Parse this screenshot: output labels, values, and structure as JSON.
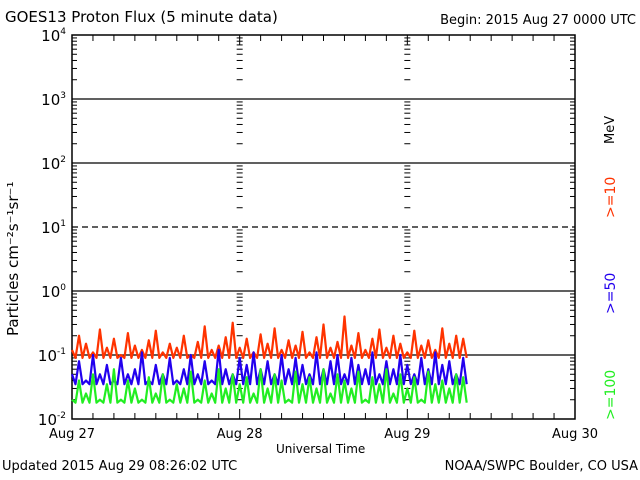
{
  "chart_data": {
    "type": "line",
    "title": "GOES13 Proton Flux (5 minute data)",
    "begin_label": "Begin: 2015 Aug 27 0000 UTC",
    "xlabel": "Universal Time",
    "ylabel": "Particles cm⁻²s⁻¹sr⁻¹",
    "yscale": "log",
    "ylim": [
      0.01,
      10000
    ],
    "xlim_hours": [
      0,
      72
    ],
    "x_ticks": [
      "Aug 27",
      "Aug 28",
      "Aug 29",
      "Aug 30"
    ],
    "y_ticks": [
      {
        "base": "10",
        "exp": "4",
        "value": 10000
      },
      {
        "base": "10",
        "exp": "3",
        "value": 1000
      },
      {
        "base": "10",
        "exp": "2",
        "value": 100
      },
      {
        "base": "10",
        "exp": "1",
        "value": 10
      },
      {
        "base": "10",
        "exp": "0",
        "value": 1
      },
      {
        "base": "10",
        "exp": "-1",
        "value": 0.1
      },
      {
        "base": "10",
        "exp": "-2",
        "value": 0.01
      }
    ],
    "threshold_dashed": 10,
    "x_hours_step": 1,
    "series": [
      {
        "name": ">=10",
        "color": "#ff3300",
        "floor": 0.09,
        "values": [
          0.12,
          0.2,
          0.15,
          0.11,
          0.25,
          0.13,
          0.18,
          0.1,
          0.22,
          0.14,
          0.12,
          0.17,
          0.24,
          0.11,
          0.15,
          0.13,
          0.2,
          0.1,
          0.16,
          0.28,
          0.12,
          0.14,
          0.19,
          0.32,
          0.13,
          0.18,
          0.11,
          0.21,
          0.15,
          0.26,
          0.12,
          0.17,
          0.14,
          0.23,
          0.11,
          0.19,
          0.3,
          0.13,
          0.16,
          0.4,
          0.14,
          0.22,
          0.12,
          0.18,
          0.25,
          0.13,
          0.2,
          0.15,
          0.11,
          0.24,
          0.14,
          0.17,
          0.12,
          0.26,
          0.15,
          0.2,
          0.18
        ]
      },
      {
        "name": ">=50",
        "color": "#2200ee",
        "floor": 0.035,
        "values": [
          0.05,
          0.08,
          0.04,
          0.1,
          0.05,
          0.07,
          0.04,
          0.09,
          0.05,
          0.06,
          0.11,
          0.04,
          0.07,
          0.05,
          0.09,
          0.04,
          0.06,
          0.1,
          0.05,
          0.08,
          0.04,
          0.12,
          0.06,
          0.05,
          0.09,
          0.07,
          0.11,
          0.06,
          0.08,
          0.05,
          0.1,
          0.06,
          0.09,
          0.07,
          0.05,
          0.11,
          0.06,
          0.08,
          0.1,
          0.05,
          0.09,
          0.07,
          0.06,
          0.11,
          0.05,
          0.08,
          0.06,
          0.1,
          0.07,
          0.05,
          0.09,
          0.06,
          0.11,
          0.07,
          0.08,
          0.05,
          0.09
        ]
      },
      {
        "name": ">=100",
        "color": "#22ee22",
        "floor": 0.018,
        "values": [
          0.02,
          0.04,
          0.025,
          0.05,
          0.02,
          0.035,
          0.06,
          0.02,
          0.04,
          0.03,
          0.02,
          0.045,
          0.025,
          0.05,
          0.02,
          0.035,
          0.03,
          0.055,
          0.02,
          0.04,
          0.025,
          0.06,
          0.03,
          0.05,
          0.035,
          0.045,
          0.025,
          0.06,
          0.03,
          0.05,
          0.04,
          0.02,
          0.055,
          0.035,
          0.045,
          0.03,
          0.06,
          0.025,
          0.05,
          0.04,
          0.03,
          0.055,
          0.02,
          0.045,
          0.035,
          0.06,
          0.025,
          0.05,
          0.03,
          0.045,
          0.02,
          0.055,
          0.035,
          0.04,
          0.03,
          0.05,
          0.045
        ]
      }
    ],
    "legend": {
      "placement": "right",
      "unit": "MeV"
    }
  },
  "footer": {
    "updated": "Updated 2015 Aug 29 08:26:02 UTC",
    "source": "NOAA/SWPC Boulder, CO USA"
  }
}
